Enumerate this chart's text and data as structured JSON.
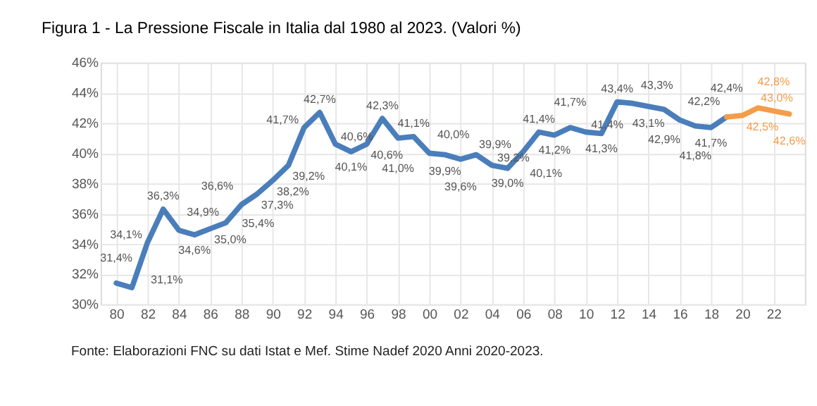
{
  "chart_data": {
    "type": "line",
    "title": "Figura 1 - La Pressione Fiscale in Italia dal 1980 al 2023. (Valori %)",
    "annotations": [
      "Fonte: Elaborazioni FNC su dati Istat e Mef. Stime Nadef 2020 Anni 2020-2023."
    ],
    "series": [
      {
        "color": "#4a7ebb",
        "x": [
          1980,
          1981,
          1982,
          1983,
          1984,
          1985,
          1986,
          1987,
          1988,
          1989,
          1990,
          1991,
          1992,
          1993,
          1994,
          1995,
          1996,
          1997,
          1998,
          1999,
          2000,
          2001,
          2002,
          2003,
          2004,
          2005,
          2006,
          2007,
          2008,
          2009,
          2010,
          2011,
          2012,
          2013,
          2014,
          2015,
          2016,
          2017,
          2018,
          2019
        ],
        "values": [
          31.4,
          31.1,
          34.1,
          36.3,
          34.9,
          34.6,
          35.0,
          35.4,
          36.6,
          37.3,
          38.2,
          39.2,
          41.7,
          42.7,
          40.6,
          40.1,
          40.6,
          42.3,
          41.0,
          41.1,
          40.0,
          39.9,
          39.6,
          39.9,
          39.2,
          39.0,
          40.1,
          41.4,
          41.2,
          41.7,
          41.4,
          41.3,
          43.4,
          43.3,
          43.1,
          42.9,
          42.2,
          41.8,
          41.7,
          42.4
        ],
        "value_labels": [
          "31,4%",
          "31,1%",
          "34,1%",
          "36,3%",
          "34,9%",
          "34,6%",
          "35,0%",
          "35,4%",
          "36,6%",
          "37,3%",
          "38,2%",
          "39,2%",
          "41,7%",
          "42,7%",
          "40,6%",
          "40,1%",
          "40,6%",
          "42,3%",
          "41,0%",
          "41,1%",
          "40,0%",
          "39,9%",
          "39,6%",
          "39,9%",
          "39,2%",
          "39,0%",
          "40,1%",
          "41,4%",
          "41,2%",
          "41,7%",
          "41,4%",
          "41,3%",
          "43,4%",
          "43,3%",
          "43,1%",
          "42,9%",
          "42,2%",
          "41,8%",
          "41,7%",
          "42,4%"
        ]
      },
      {
        "color": "#f59c48",
        "x": [
          2019,
          2020,
          2021,
          2022,
          2023
        ],
        "values": [
          42.4,
          42.5,
          43.0,
          42.8,
          42.6
        ],
        "value_labels": [
          null,
          "42,5%",
          "43,0%",
          "42,8%",
          "42,6%"
        ]
      }
    ],
    "xlim": [
      1979,
      2024
    ],
    "xticks": [
      {
        "value": 1980,
        "label": "80"
      },
      {
        "value": 1982,
        "label": "82"
      },
      {
        "value": 1984,
        "label": "84"
      },
      {
        "value": 1986,
        "label": "86"
      },
      {
        "value": 1988,
        "label": "88"
      },
      {
        "value": 1990,
        "label": "90"
      },
      {
        "value": 1992,
        "label": "92"
      },
      {
        "value": 1994,
        "label": "94"
      },
      {
        "value": 1996,
        "label": "96"
      },
      {
        "value": 1998,
        "label": "98"
      },
      {
        "value": 2000,
        "label": "00"
      },
      {
        "value": 2002,
        "label": "02"
      },
      {
        "value": 2004,
        "label": "04"
      },
      {
        "value": 2006,
        "label": "06"
      },
      {
        "value": 2008,
        "label": "08"
      },
      {
        "value": 2010,
        "label": "10"
      },
      {
        "value": 2012,
        "label": "12"
      },
      {
        "value": 2014,
        "label": "14"
      },
      {
        "value": 2016,
        "label": "16"
      },
      {
        "value": 2018,
        "label": "18"
      },
      {
        "value": 2020,
        "label": "20"
      },
      {
        "value": 2022,
        "label": "22"
      }
    ],
    "ylim": [
      30,
      46
    ],
    "yticks": [
      {
        "value": 30,
        "label": "30%"
      },
      {
        "value": 32,
        "label": "32%"
      },
      {
        "value": 34,
        "label": "34%"
      },
      {
        "value": 36,
        "label": "36%"
      },
      {
        "value": 38,
        "label": "38%"
      },
      {
        "value": 40,
        "label": "40%"
      },
      {
        "value": 42,
        "label": "42%"
      },
      {
        "value": 44,
        "label": "44%"
      },
      {
        "value": 46,
        "label": "46%"
      }
    ],
    "grid": true,
    "marker": "none",
    "line_style": "solid"
  }
}
